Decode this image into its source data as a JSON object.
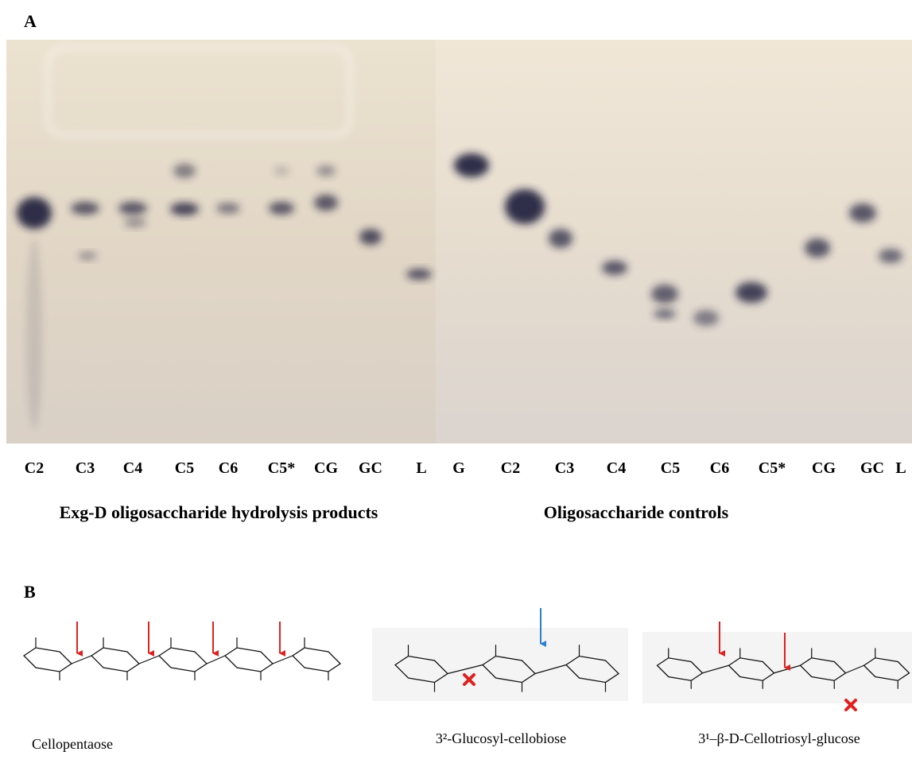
{
  "panel_a": {
    "label": "A",
    "gel_left": {
      "lanes": [
        "C2",
        "C3",
        "C4",
        "C5",
        "C6",
        "C5*",
        "CG",
        "GC",
        "L"
      ],
      "caption": "Exg-D oligosaccharide hydrolysis products"
    },
    "gel_right": {
      "lanes": [
        "G",
        "C2",
        "C3",
        "C4",
        "C5",
        "C6",
        "C5*",
        "CG",
        "GC",
        "L"
      ],
      "caption": "Oligosaccharide controls"
    }
  },
  "panel_b": {
    "label": "B",
    "structures": [
      {
        "name": "Cellopentaose"
      },
      {
        "name": "3²-Glucosyl-cellobiose"
      },
      {
        "name": "3¹–β-D-Cellotriosyl-glucose"
      }
    ]
  }
}
